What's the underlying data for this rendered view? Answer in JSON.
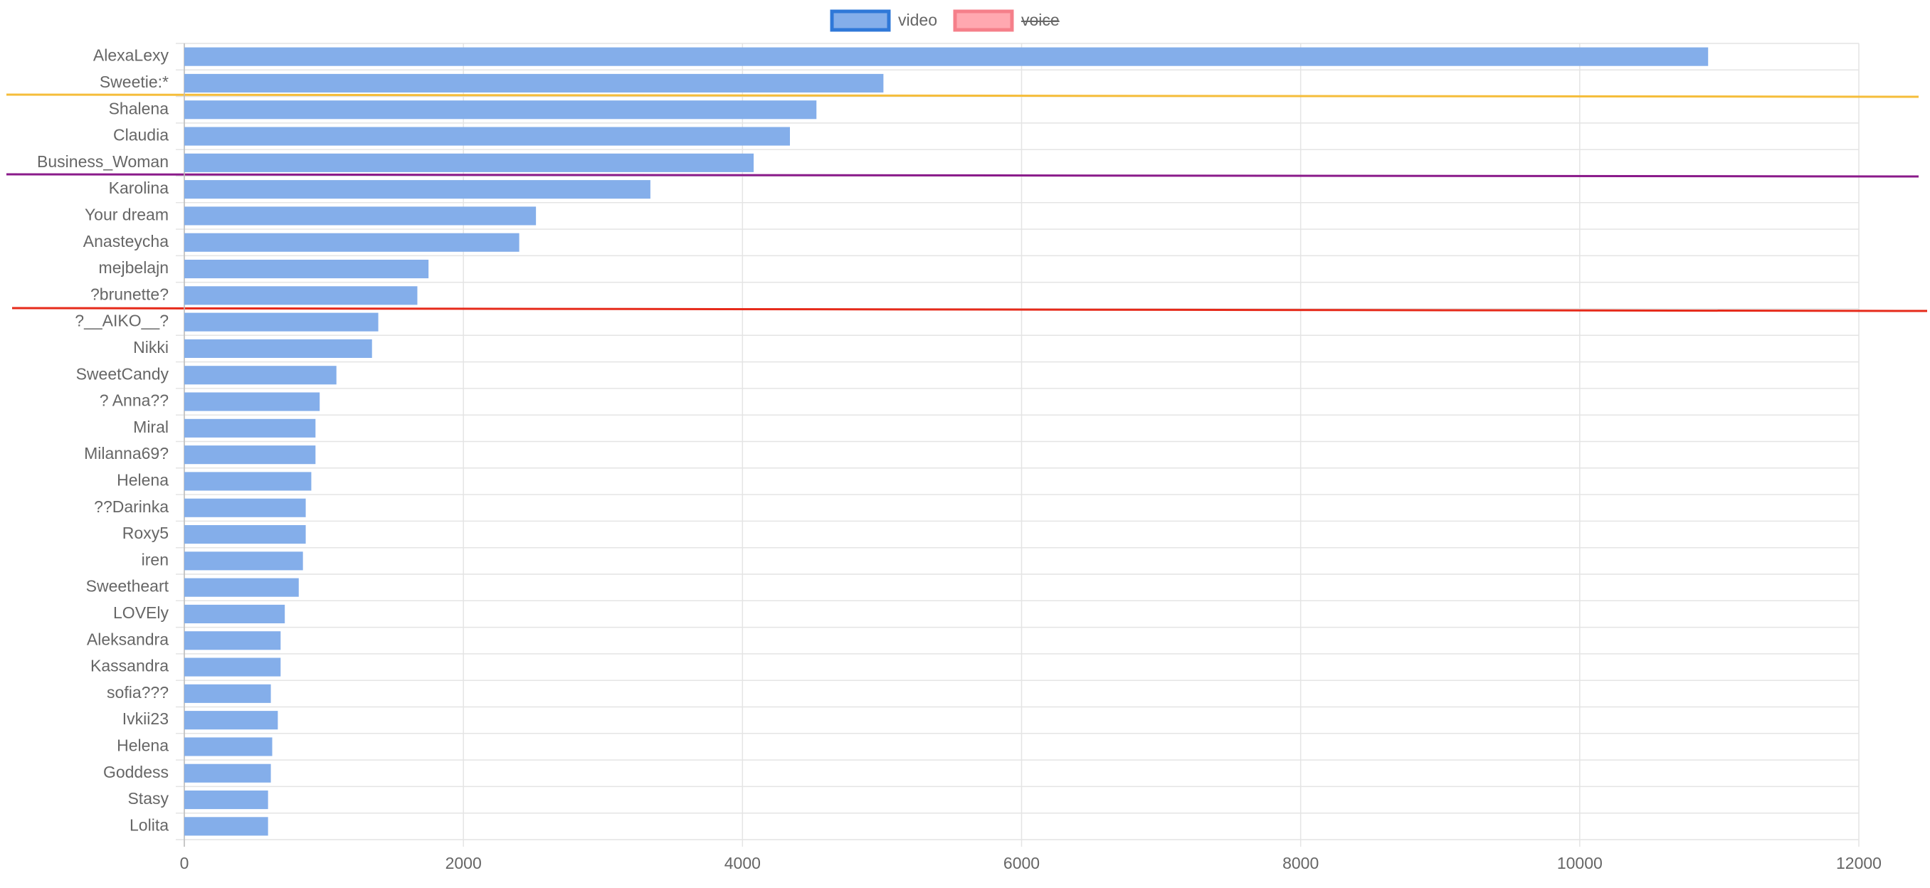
{
  "chart_data": {
    "type": "bar",
    "categories": [
      "AlexaLexy",
      "Sweetie:*",
      "Shalena",
      "Claudia",
      "Business_Woman",
      "Karolina",
      "Your dream",
      "Anasteycha",
      "mejbelajn",
      "?brunette?",
      "?__AIKO__?",
      "Nikki",
      "SweetCandy",
      "? Anna??",
      "Miral",
      "Milanna69?",
      "Helena",
      "??Darinka",
      "Roxy5",
      "iren",
      "Sweetheart",
      "LOVEly",
      "Aleksandra",
      "Kassandra",
      "sofia???",
      "Ivkii23",
      "Helena",
      "Goddess",
      "Stasy",
      "Lolita"
    ],
    "series": [
      {
        "name": "video",
        "color": "#84aeea",
        "border": "#2f78d8",
        "values": [
          10920,
          5010,
          4530,
          4340,
          4080,
          3340,
          2520,
          2400,
          1750,
          1670,
          1390,
          1345,
          1090,
          970,
          940,
          940,
          910,
          870,
          870,
          850,
          820,
          720,
          690,
          690,
          620,
          670,
          630,
          620,
          600,
          600
        ]
      }
    ],
    "hidden_series": [
      {
        "name": "voice",
        "color": "#ffa8b0",
        "border": "#f57f8a"
      }
    ],
    "xlim": [
      0,
      12000
    ],
    "xticks": [
      0,
      2000,
      4000,
      6000,
      8000,
      10000,
      12000
    ],
    "grid": true
  }
}
